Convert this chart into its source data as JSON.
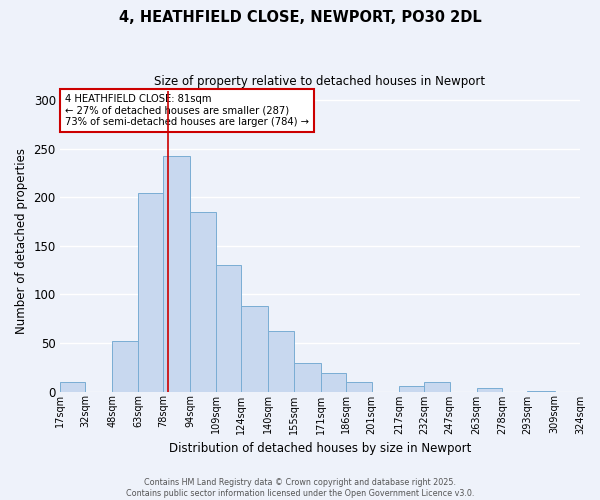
{
  "title": "4, HEATHFIELD CLOSE, NEWPORT, PO30 2DL",
  "subtitle": "Size of property relative to detached houses in Newport",
  "xlabel": "Distribution of detached houses by size in Newport",
  "ylabel": "Number of detached properties",
  "bar_color": "#c8d8ef",
  "bar_edge_color": "#7aadd4",
  "background_color": "#eef2fa",
  "grid_color": "#ffffff",
  "vline_value": 81,
  "vline_color": "#cc0000",
  "annotation_title": "4 HEATHFIELD CLOSE: 81sqm",
  "annotation_line1": "← 27% of detached houses are smaller (287)",
  "annotation_line2": "73% of semi-detached houses are larger (784) →",
  "bin_edges": [
    17,
    32,
    48,
    63,
    78,
    94,
    109,
    124,
    140,
    155,
    171,
    186,
    201,
    217,
    232,
    247,
    263,
    278,
    293,
    309,
    324
  ],
  "bin_labels": [
    "17sqm",
    "32sqm",
    "48sqm",
    "63sqm",
    "78sqm",
    "94sqm",
    "109sqm",
    "124sqm",
    "140sqm",
    "155sqm",
    "171sqm",
    "186sqm",
    "201sqm",
    "217sqm",
    "232sqm",
    "247sqm",
    "263sqm",
    "278sqm",
    "293sqm",
    "309sqm",
    "324sqm"
  ],
  "counts": [
    10,
    0,
    52,
    204,
    243,
    185,
    130,
    88,
    62,
    29,
    19,
    10,
    0,
    6,
    10,
    0,
    4,
    0,
    1,
    0
  ],
  "ylim": [
    0,
    310
  ],
  "yticks": [
    0,
    50,
    100,
    150,
    200,
    250,
    300
  ],
  "footer1": "Contains HM Land Registry data © Crown copyright and database right 2025.",
  "footer2": "Contains public sector information licensed under the Open Government Licence v3.0."
}
